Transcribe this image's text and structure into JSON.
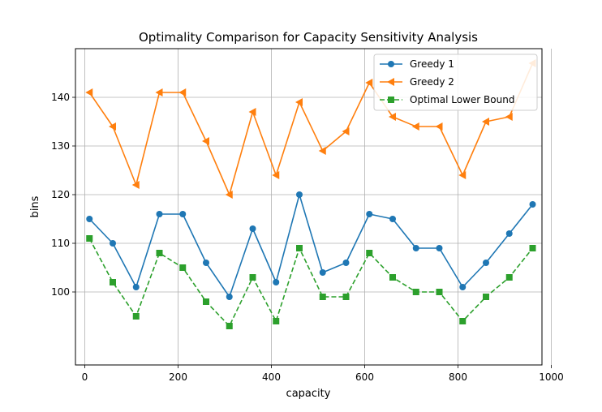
{
  "chart_data": {
    "type": "line",
    "title": "Optimality Comparison for Capacity Sensitivity Analysis",
    "xlabel": "capacity",
    "ylabel": "bins",
    "xlim": [
      -20,
      980
    ],
    "ylim": [
      85,
      150
    ],
    "xticks": [
      0,
      200,
      400,
      600,
      800,
      1000
    ],
    "yticks": [
      100,
      110,
      120,
      130,
      140
    ],
    "grid": true,
    "legend_position": "top-right",
    "x": [
      10,
      60,
      110,
      160,
      210,
      260,
      310,
      360,
      410,
      460,
      510,
      560,
      610,
      660,
      710,
      760,
      810,
      860,
      910,
      960
    ],
    "series": [
      {
        "name": "Greedy 1",
        "color": "#1f77b4",
        "marker": "circle",
        "linestyle": "solid",
        "values": [
          115,
          110,
          101,
          116,
          116,
          106,
          99,
          113,
          102,
          120,
          104,
          106,
          116,
          115,
          109,
          109,
          101,
          106,
          112,
          118
        ]
      },
      {
        "name": "Greedy 2",
        "color": "#ff7f0e",
        "marker": "triangle-left",
        "linestyle": "solid",
        "values": [
          141,
          134,
          122,
          141,
          141,
          131,
          120,
          137,
          124,
          139,
          129,
          133,
          143,
          136,
          134,
          134,
          124,
          135,
          136,
          147
        ]
      },
      {
        "name": "Optimal Lower Bound",
        "color": "#2ca02c",
        "marker": "square",
        "linestyle": "dashed",
        "values": [
          111,
          102,
          95,
          108,
          105,
          98,
          93,
          103,
          94,
          109,
          99,
          99,
          108,
          103,
          100,
          100,
          94,
          99,
          103,
          109
        ]
      }
    ]
  }
}
